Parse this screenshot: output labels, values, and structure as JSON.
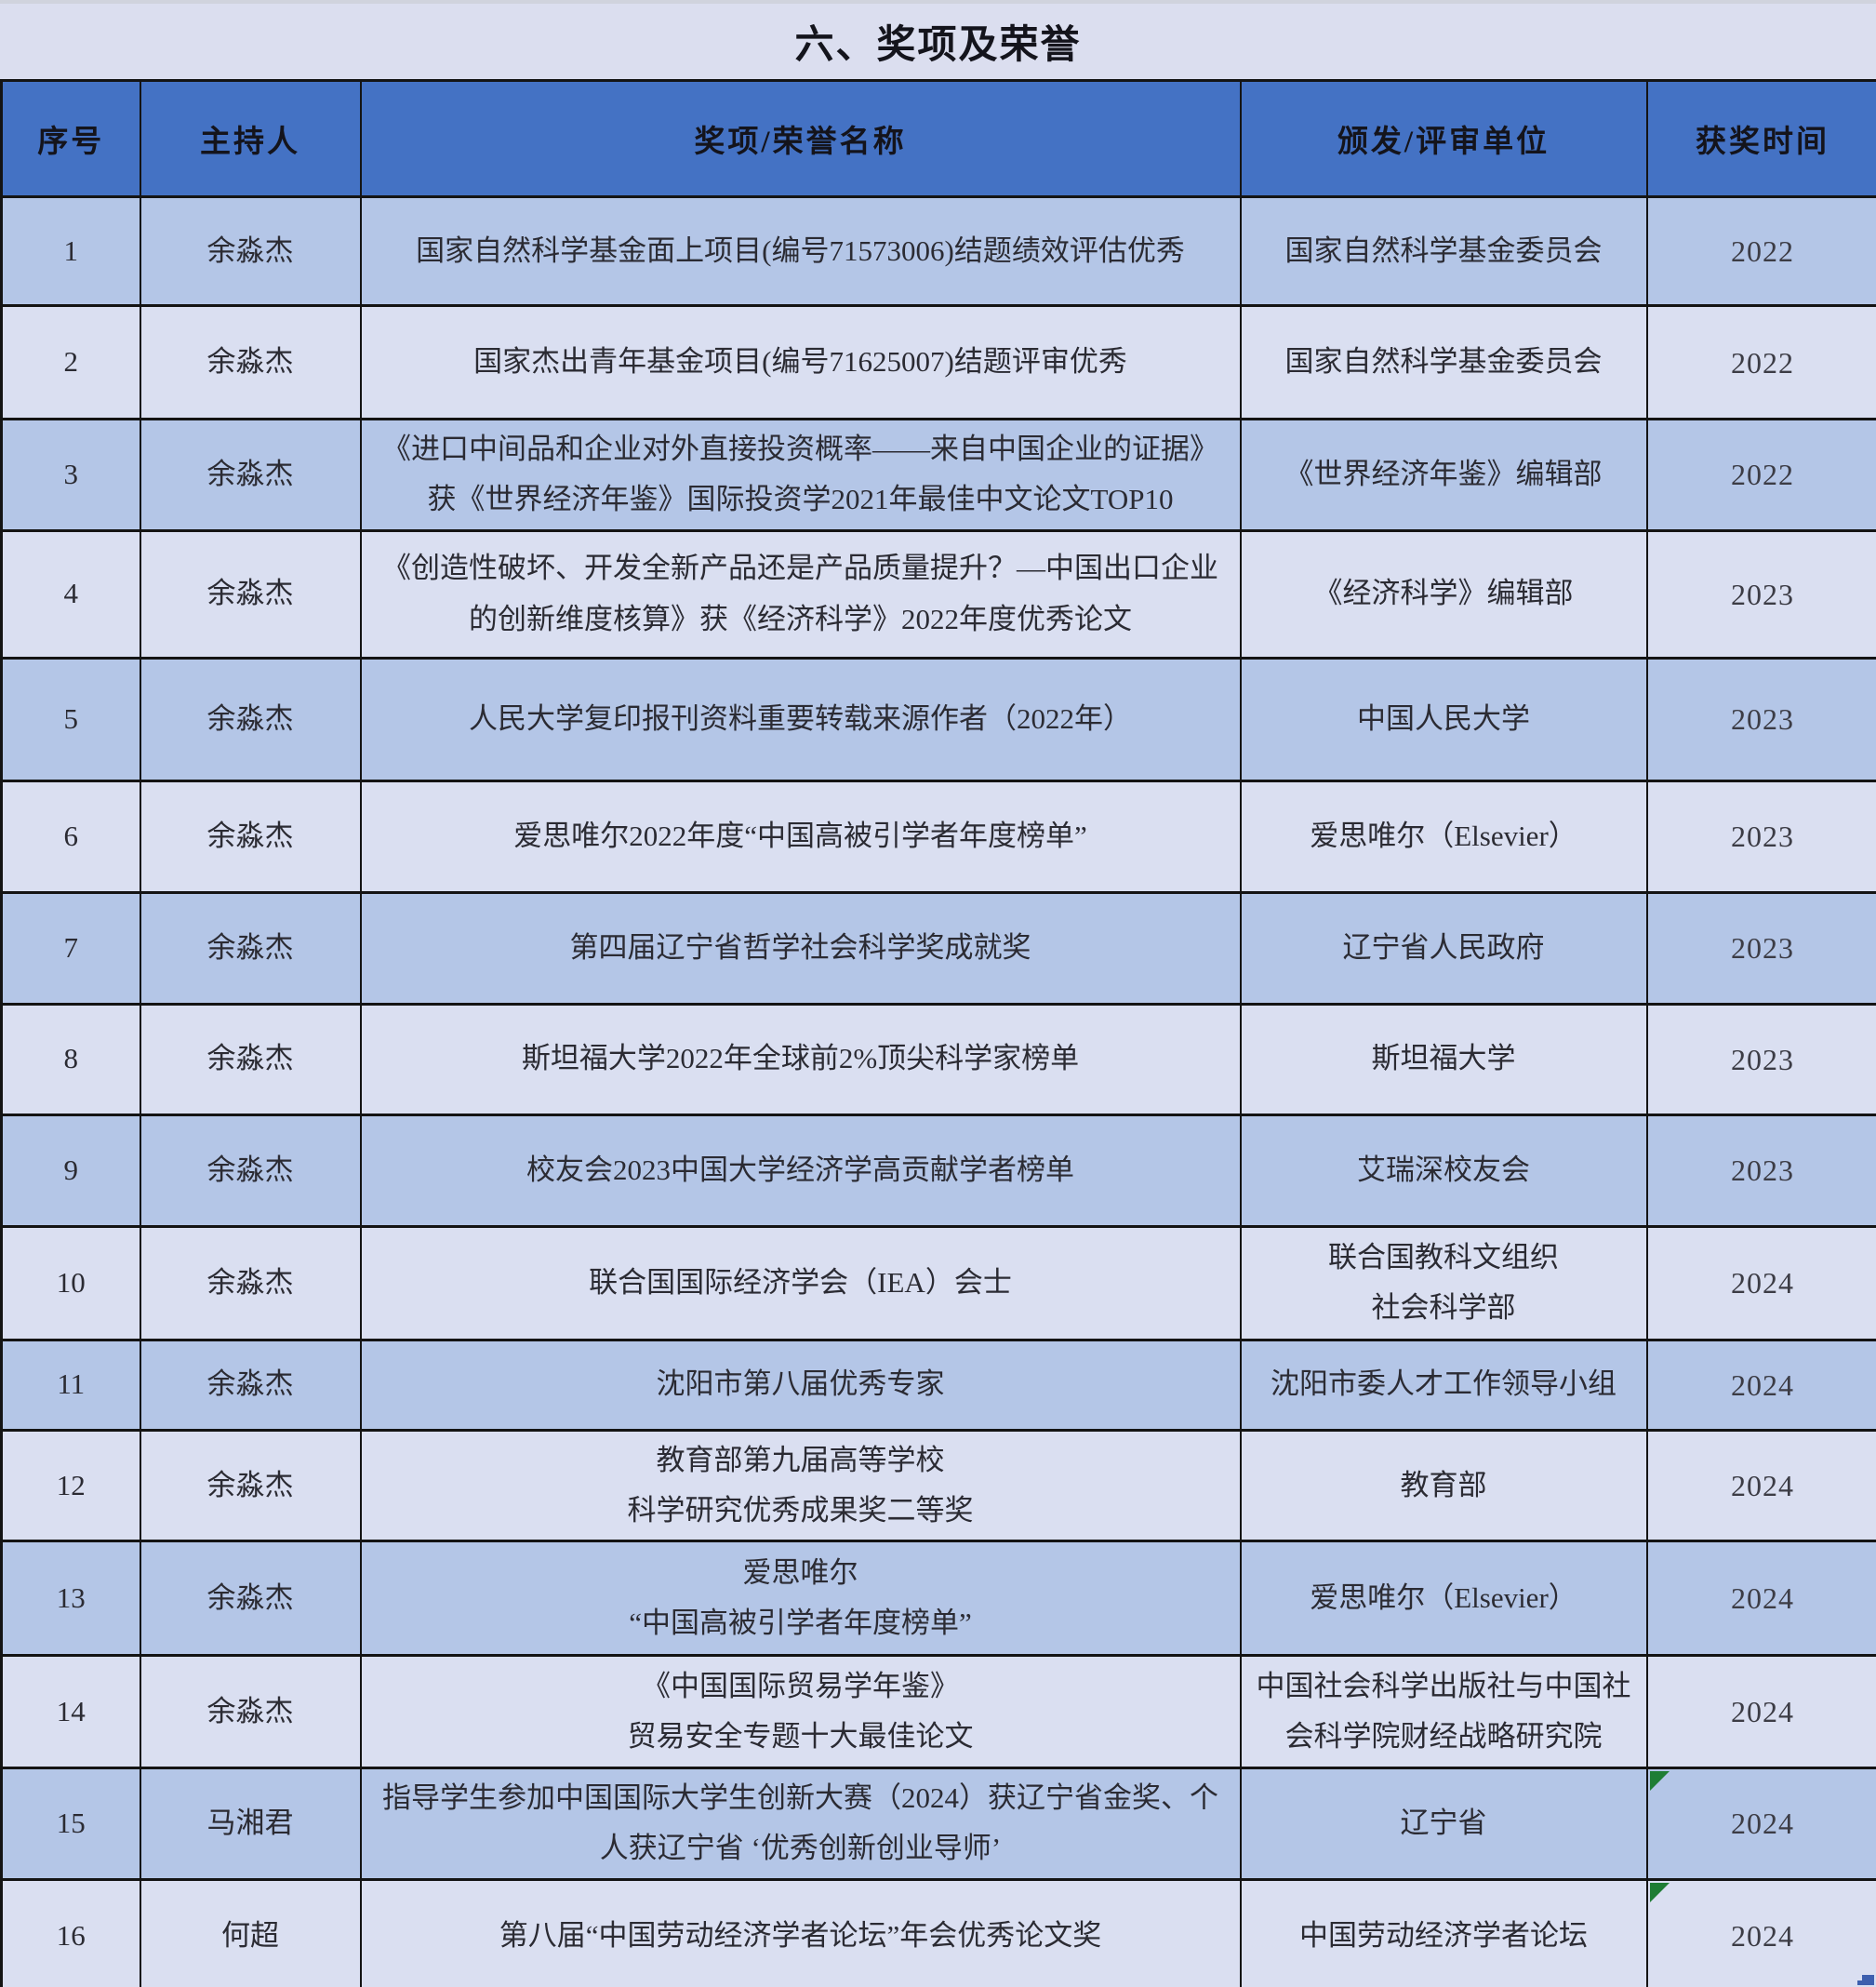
{
  "title": "六、奖项及荣誉",
  "table": {
    "columns": [
      "序号",
      "主持人",
      "奖项/荣誉名称",
      "颁发/评审单位",
      "获奖时间"
    ],
    "rows": [
      {
        "no": "1",
        "host": "余淼杰",
        "award": "国家自然科学基金面上项目(编号71573006)结题绩效评估优秀",
        "issuer": "国家自然科学基金委员会",
        "year": "2022",
        "error_marker": false
      },
      {
        "no": "2",
        "host": "余淼杰",
        "award": "国家杰出青年基金项目(编号71625007)结题评审优秀",
        "issuer": "国家自然科学基金委员会",
        "year": "2022",
        "error_marker": false
      },
      {
        "no": "3",
        "host": "余淼杰",
        "award": "《进口中间品和企业对外直接投资概率——来自中国企业的证据》\n获《世界经济年鉴》国际投资学2021年最佳中文论文TOP10",
        "issuer": "《世界经济年鉴》编辑部",
        "year": "2022",
        "error_marker": false
      },
      {
        "no": "4",
        "host": "余淼杰",
        "award": "《创造性破坏、开发全新产品还是产品质量提升？—中国出口企业\n的创新维度核算》获《经济科学》2022年度优秀论文",
        "issuer": "《经济科学》编辑部",
        "year": "2023",
        "error_marker": false
      },
      {
        "no": "5",
        "host": "余淼杰",
        "award": "人民大学复印报刊资料重要转载来源作者（2022年）",
        "issuer": "中国人民大学",
        "year": "2023",
        "error_marker": false
      },
      {
        "no": "6",
        "host": "余淼杰",
        "award": "爱思唯尔2022年度“中国高被引学者年度榜单”",
        "issuer": "爱思唯尔（Elsevier）",
        "year": "2023",
        "error_marker": false
      },
      {
        "no": "7",
        "host": "余淼杰",
        "award": "第四届辽宁省哲学社会科学奖成就奖",
        "issuer": "辽宁省人民政府",
        "year": "2023",
        "error_marker": false
      },
      {
        "no": "8",
        "host": "余淼杰",
        "award": "斯坦福大学2022年全球前2%顶尖科学家榜单",
        "issuer": "斯坦福大学",
        "year": "2023",
        "error_marker": false
      },
      {
        "no": "9",
        "host": "余淼杰",
        "award": "校友会2023中国大学经济学高贡献学者榜单",
        "issuer": "艾瑞深校友会",
        "year": "2023",
        "error_marker": false
      },
      {
        "no": "10",
        "host": "余淼杰",
        "award": "联合国国际经济学会（IEA）会士",
        "issuer": "联合国教科文组织\n社会科学部",
        "year": "2024",
        "error_marker": false
      },
      {
        "no": "11",
        "host": "余淼杰",
        "award": "沈阳市第八届优秀专家",
        "issuer": "沈阳市委人才工作领导小组",
        "year": "2024",
        "error_marker": false
      },
      {
        "no": "12",
        "host": "余淼杰",
        "award": "教育部第九届高等学校\n科学研究优秀成果奖二等奖",
        "issuer": "教育部",
        "year": "2024",
        "error_marker": false
      },
      {
        "no": "13",
        "host": "余淼杰",
        "award": "爱思唯尔\n“中国高被引学者年度榜单”",
        "issuer": "爱思唯尔（Elsevier）",
        "year": "2024",
        "error_marker": false
      },
      {
        "no": "14",
        "host": "余淼杰",
        "award": "《中国国际贸易学年鉴》\n贸易安全专题十大最佳论文",
        "issuer": "中国社会科学出版社与中国社\n会科学院财经战略研究院",
        "year": "2024",
        "error_marker": false
      },
      {
        "no": "15",
        "host": "马湘君",
        "award": "指导学生参加中国国际大学生创新大赛（2024）获辽宁省金奖、个\n人获辽宁省 ‘优秀创新创业导师’",
        "issuer": "辽宁省",
        "year": "2024",
        "error_marker": true
      },
      {
        "no": "16",
        "host": "何超",
        "award": "第八届“中国劳动经济学者论坛”年会优秀论文奖",
        "issuer": "中国劳动经济学者论坛",
        "year": "2024",
        "error_marker": true
      }
    ]
  },
  "colors": {
    "header_bg": "#4472c4",
    "row_odd_bg": "#b4c6e7",
    "row_even_bg": "#dadff1",
    "title_bg": "#dbdeef",
    "border_col": "#141414",
    "marker_green": "#1e7d34",
    "artifact_blue": "#3d5fae"
  }
}
